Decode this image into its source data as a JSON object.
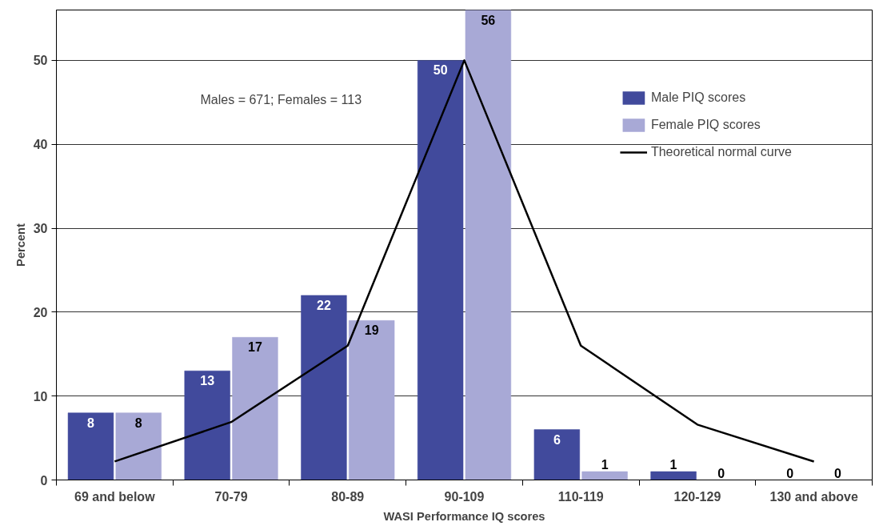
{
  "chart_data": {
    "type": "bar",
    "xlabel": "WASI Performance IQ scores",
    "ylabel": "Percent",
    "categories": [
      "69 and below",
      "70-79",
      "80-89",
      "90-109",
      "110-119",
      "120-129",
      "130 and above"
    ],
    "series": [
      {
        "name": "Male PIQ scores",
        "color": "#414a9c",
        "values": [
          8,
          13,
          22,
          50,
          6,
          1,
          0
        ],
        "value_labels": [
          "8",
          "13",
          "22",
          "50",
          "6",
          "1",
          "0"
        ]
      },
      {
        "name": "Female PIQ scores",
        "color": "#a8a9d6",
        "values": [
          8,
          17,
          19,
          56,
          1,
          0,
          0
        ],
        "value_labels": [
          "8",
          "17",
          "19",
          "56",
          "1",
          "0",
          "0"
        ]
      },
      {
        "name": "Theoretical normal curve",
        "type": "line",
        "color": "#000000",
        "values": [
          2.2,
          6.9,
          16.0,
          50,
          16.0,
          6.6,
          2.2
        ]
      }
    ],
    "ylim": [
      0,
      56
    ],
    "yticks": [
      0,
      10,
      20,
      30,
      40,
      50
    ],
    "grid": "y",
    "legend": "top right",
    "line_style": "solid",
    "marker": "none",
    "annotations": [
      "Males = 671; Females = 113"
    ]
  }
}
